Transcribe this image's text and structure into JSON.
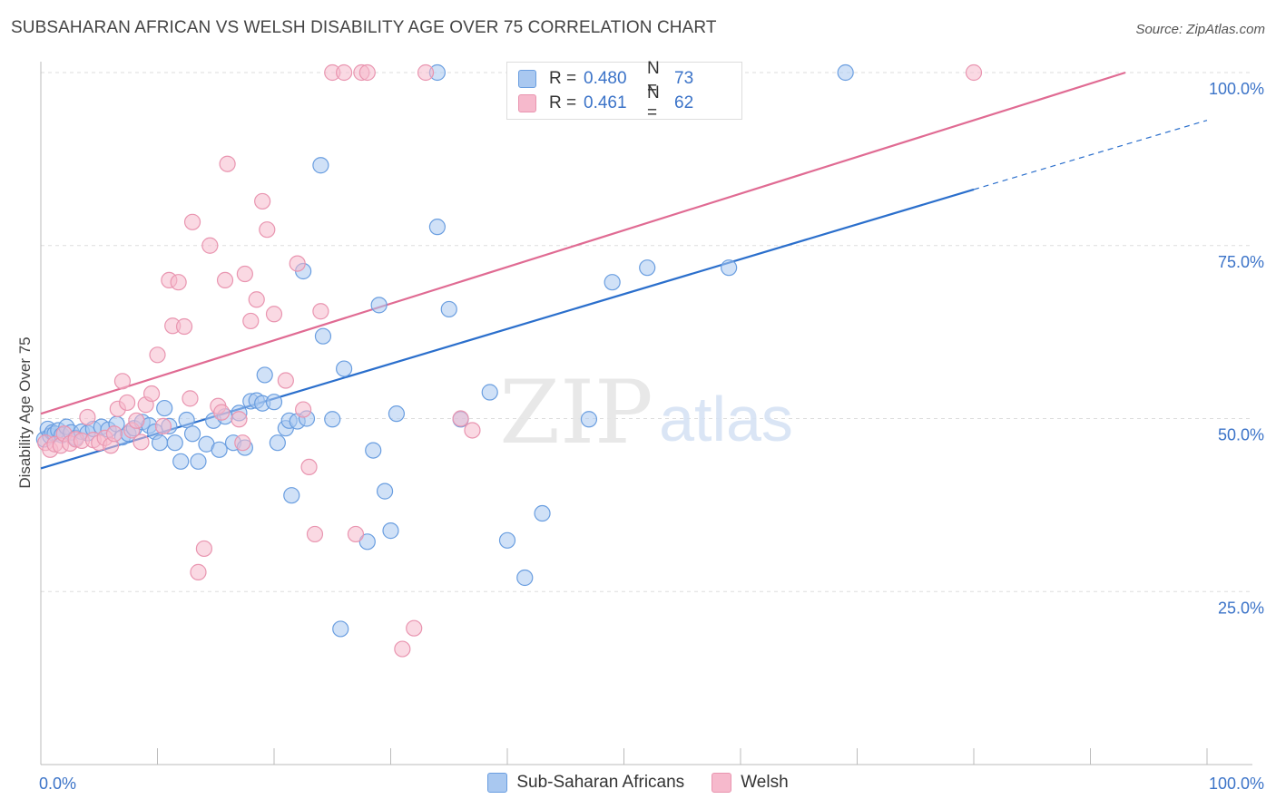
{
  "title": "SUBSAHARAN AFRICAN VS WELSH DISABILITY AGE OVER 75 CORRELATION CHART",
  "source": "Source: ZipAtlas.com",
  "watermark": {
    "zip": "ZIP",
    "atlas": "atlas"
  },
  "colors": {
    "blue_fill": "#a9c8f0",
    "blue_stroke": "#6a9ee0",
    "blue_line": "#2b6fcc",
    "pink_fill": "#f6b9cc",
    "pink_stroke": "#e995b0",
    "pink_line": "#e06b93",
    "tick_text": "#3b73c8",
    "grid": "#dddddd"
  },
  "legend": {
    "rows": [
      {
        "r_label": "R =",
        "r_value": "0.480",
        "n_label": "N =",
        "n_value": "73",
        "swatch": "#a9c8f0"
      },
      {
        "r_label": "R =",
        "r_value": "0.461",
        "n_label": "N =",
        "n_value": "62",
        "swatch": "#f6b9cc"
      }
    ]
  },
  "bottom_legend": [
    {
      "label": "Sub-Saharan Africans",
      "swatch": "#a9c8f0"
    },
    {
      "label": "Welsh",
      "swatch": "#f6b9cc"
    }
  ],
  "chart_data": {
    "type": "scatter",
    "title": "SUBSAHARAN AFRICAN VS WELSH DISABILITY AGE OVER 75 CORRELATION CHART",
    "xlabel": "",
    "ylabel": "Disability Age Over 75",
    "xlim": [
      0,
      100
    ],
    "ylim": [
      0,
      100
    ],
    "x_tick_labels": [
      "0.0%",
      "100.0%"
    ],
    "y_tick_labels": [
      "25.0%",
      "50.0%",
      "75.0%",
      "100.0%"
    ],
    "y_ticks": [
      25,
      50,
      75,
      100
    ],
    "grid": true,
    "legend_placement": "top-center",
    "series": [
      {
        "name": "Sub-Saharan Africans",
        "r": 0.48,
        "n": 73,
        "trend": {
          "x0": 0,
          "y0": 42.8,
          "x1": 80,
          "y1": 83.1,
          "dashed_to_x": 100,
          "dashed_to_y": 93.1
        },
        "points": [
          [
            0.3,
            47.0
          ],
          [
            0.6,
            48.5
          ],
          [
            0.8,
            47.5
          ],
          [
            1.0,
            48.0
          ],
          [
            1.2,
            47.8
          ],
          [
            1.5,
            48.3
          ],
          [
            1.8,
            47.6
          ],
          [
            2.2,
            48.8
          ],
          [
            2.6,
            48.0
          ],
          [
            3.0,
            47.2
          ],
          [
            3.5,
            48.1
          ],
          [
            4.0,
            47.9
          ],
          [
            4.5,
            48.5
          ],
          [
            5.2,
            48.8
          ],
          [
            5.8,
            48.4
          ],
          [
            6.5,
            49.2
          ],
          [
            7.0,
            47.3
          ],
          [
            7.5,
            47.8
          ],
          [
            8.0,
            48.6
          ],
          [
            8.7,
            49.5
          ],
          [
            9.3,
            49.0
          ],
          [
            9.8,
            48.1
          ],
          [
            10.2,
            46.5
          ],
          [
            10.6,
            51.5
          ],
          [
            11.0,
            48.9
          ],
          [
            11.5,
            46.5
          ],
          [
            12.0,
            43.8
          ],
          [
            12.5,
            49.8
          ],
          [
            13.0,
            47.8
          ],
          [
            13.5,
            43.8
          ],
          [
            14.2,
            46.3
          ],
          [
            14.8,
            49.7
          ],
          [
            15.3,
            45.5
          ],
          [
            15.8,
            50.3
          ],
          [
            16.5,
            46.5
          ],
          [
            17.0,
            50.8
          ],
          [
            17.5,
            45.8
          ],
          [
            18.0,
            52.5
          ],
          [
            18.5,
            52.6
          ],
          [
            19.0,
            52.2
          ],
          [
            19.2,
            56.3
          ],
          [
            20.0,
            52.4
          ],
          [
            20.3,
            46.5
          ],
          [
            21.0,
            48.6
          ],
          [
            21.3,
            49.7
          ],
          [
            21.5,
            38.9
          ],
          [
            22.0,
            49.6
          ],
          [
            22.5,
            71.3
          ],
          [
            22.8,
            50.0
          ],
          [
            24.0,
            86.6
          ],
          [
            24.2,
            61.9
          ],
          [
            25.0,
            49.9
          ],
          [
            25.7,
            19.6
          ],
          [
            26.0,
            57.2
          ],
          [
            28.0,
            32.2
          ],
          [
            28.5,
            45.4
          ],
          [
            29.0,
            66.4
          ],
          [
            29.5,
            39.5
          ],
          [
            30.0,
            33.8
          ],
          [
            30.5,
            50.7
          ],
          [
            34.0,
            77.7
          ],
          [
            35.0,
            65.8
          ],
          [
            36.0,
            49.9
          ],
          [
            38.5,
            53.8
          ],
          [
            40.0,
            32.4
          ],
          [
            41.5,
            27.0
          ],
          [
            43.0,
            36.3
          ],
          [
            47.0,
            49.9
          ],
          [
            49.0,
            69.7
          ],
          [
            52.0,
            71.8
          ],
          [
            59.0,
            71.8
          ],
          [
            69.0,
            100.0
          ],
          [
            34.0,
            100.0
          ]
        ]
      },
      {
        "name": "Welsh",
        "r": 0.461,
        "n": 62,
        "trend": {
          "x0": 0,
          "y0": 50.7,
          "x1": 93,
          "y1": 100.0
        },
        "points": [
          [
            0.4,
            46.5
          ],
          [
            0.8,
            45.5
          ],
          [
            1.2,
            46.3
          ],
          [
            1.7,
            46.1
          ],
          [
            2.0,
            47.8
          ],
          [
            2.5,
            46.4
          ],
          [
            3.0,
            47.0
          ],
          [
            3.5,
            46.8
          ],
          [
            4.0,
            50.2
          ],
          [
            4.5,
            46.9
          ],
          [
            5.0,
            46.5
          ],
          [
            5.5,
            47.2
          ],
          [
            6.0,
            46.1
          ],
          [
            6.3,
            47.8
          ],
          [
            6.6,
            51.4
          ],
          [
            7.0,
            55.4
          ],
          [
            7.4,
            52.3
          ],
          [
            7.8,
            48.3
          ],
          [
            8.2,
            49.7
          ],
          [
            8.6,
            46.6
          ],
          [
            9.0,
            52.0
          ],
          [
            9.5,
            53.6
          ],
          [
            10.0,
            59.2
          ],
          [
            10.5,
            48.9
          ],
          [
            11.0,
            70.0
          ],
          [
            11.3,
            63.4
          ],
          [
            11.8,
            69.7
          ],
          [
            12.3,
            63.3
          ],
          [
            12.8,
            52.9
          ],
          [
            13.0,
            78.4
          ],
          [
            13.5,
            27.8
          ],
          [
            14.0,
            31.2
          ],
          [
            14.5,
            75.0
          ],
          [
            15.2,
            51.8
          ],
          [
            15.5,
            50.9
          ],
          [
            15.8,
            70.0
          ],
          [
            16.0,
            86.8
          ],
          [
            17.0,
            49.9
          ],
          [
            17.3,
            46.5
          ],
          [
            17.5,
            70.9
          ],
          [
            18.0,
            64.1
          ],
          [
            18.5,
            67.2
          ],
          [
            19.0,
            81.4
          ],
          [
            19.4,
            77.3
          ],
          [
            20.0,
            65.1
          ],
          [
            21.0,
            55.5
          ],
          [
            22.0,
            72.4
          ],
          [
            22.5,
            51.3
          ],
          [
            23.0,
            43.0
          ],
          [
            23.5,
            33.3
          ],
          [
            24.0,
            65.5
          ],
          [
            25.0,
            100.0
          ],
          [
            26.0,
            100.0
          ],
          [
            27.0,
            33.3
          ],
          [
            27.5,
            100.0
          ],
          [
            28.0,
            100.0
          ],
          [
            31.0,
            16.7
          ],
          [
            32.0,
            19.7
          ],
          [
            33.0,
            100.0
          ],
          [
            36.0,
            50.0
          ],
          [
            37.0,
            48.3
          ],
          [
            80.0,
            100.0
          ]
        ]
      }
    ]
  }
}
